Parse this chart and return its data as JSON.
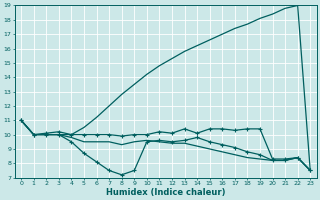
{
  "xlabel": "Humidex (Indice chaleur)",
  "bg_color": "#cce8e8",
  "line_color": "#005f5f",
  "grid_color": "#b0d8d8",
  "ylim": [
    7,
    19
  ],
  "xlim": [
    -0.5,
    23.5
  ],
  "yticks": [
    7,
    8,
    9,
    10,
    11,
    12,
    13,
    14,
    15,
    16,
    17,
    18,
    19
  ],
  "xticks": [
    0,
    1,
    2,
    3,
    4,
    5,
    6,
    7,
    8,
    9,
    10,
    11,
    12,
    13,
    14,
    15,
    16,
    17,
    18,
    19,
    20,
    21,
    22,
    23
  ],
  "line1_x": [
    0,
    1,
    2,
    3,
    4,
    5,
    6,
    7,
    8,
    9,
    10,
    11,
    12,
    13,
    14,
    15,
    16,
    17,
    18,
    19,
    20,
    21,
    22,
    23
  ],
  "line1_y": [
    11,
    10,
    10,
    10,
    10,
    10.5,
    11.2,
    12.0,
    12.8,
    13.5,
    14.2,
    14.8,
    15.3,
    15.8,
    16.2,
    16.6,
    17.0,
    17.4,
    17.7,
    18.1,
    18.4,
    18.8,
    19.0,
    7.5
  ],
  "line2_x": [
    0,
    1,
    2,
    3,
    4,
    5,
    6,
    7,
    8,
    9,
    10,
    11,
    12,
    13,
    14,
    15,
    16,
    17,
    18,
    19,
    20,
    21,
    22,
    23
  ],
  "line2_y": [
    11,
    10,
    10.1,
    10.2,
    10.0,
    10.0,
    10.0,
    10.0,
    9.9,
    10.0,
    10.0,
    10.2,
    10.1,
    10.4,
    10.1,
    10.4,
    10.4,
    10.3,
    10.4,
    10.4,
    8.3,
    8.3,
    8.4,
    7.5
  ],
  "line3_x": [
    0,
    1,
    2,
    3,
    4,
    5,
    6,
    7,
    8,
    9,
    10,
    11,
    12,
    13,
    14,
    15,
    16,
    17,
    18,
    19,
    20,
    21,
    22,
    23
  ],
  "line3_y": [
    11,
    10,
    10.0,
    10.0,
    9.5,
    8.7,
    8.1,
    7.5,
    7.2,
    7.5,
    9.5,
    9.6,
    9.5,
    9.6,
    9.8,
    9.5,
    9.3,
    9.1,
    8.8,
    8.6,
    8.2,
    8.2,
    8.4,
    7.5
  ],
  "line4_x": [
    0,
    1,
    2,
    3,
    4,
    5,
    6,
    7,
    8,
    9,
    10,
    11,
    12,
    13,
    14,
    15,
    16,
    17,
    18,
    19,
    20,
    21,
    22,
    23
  ],
  "line4_y": [
    11,
    10,
    10.0,
    10.0,
    9.8,
    9.5,
    9.5,
    9.5,
    9.3,
    9.5,
    9.6,
    9.5,
    9.4,
    9.4,
    9.2,
    9.0,
    8.8,
    8.6,
    8.4,
    8.3,
    8.2,
    8.2,
    8.4,
    7.5
  ]
}
